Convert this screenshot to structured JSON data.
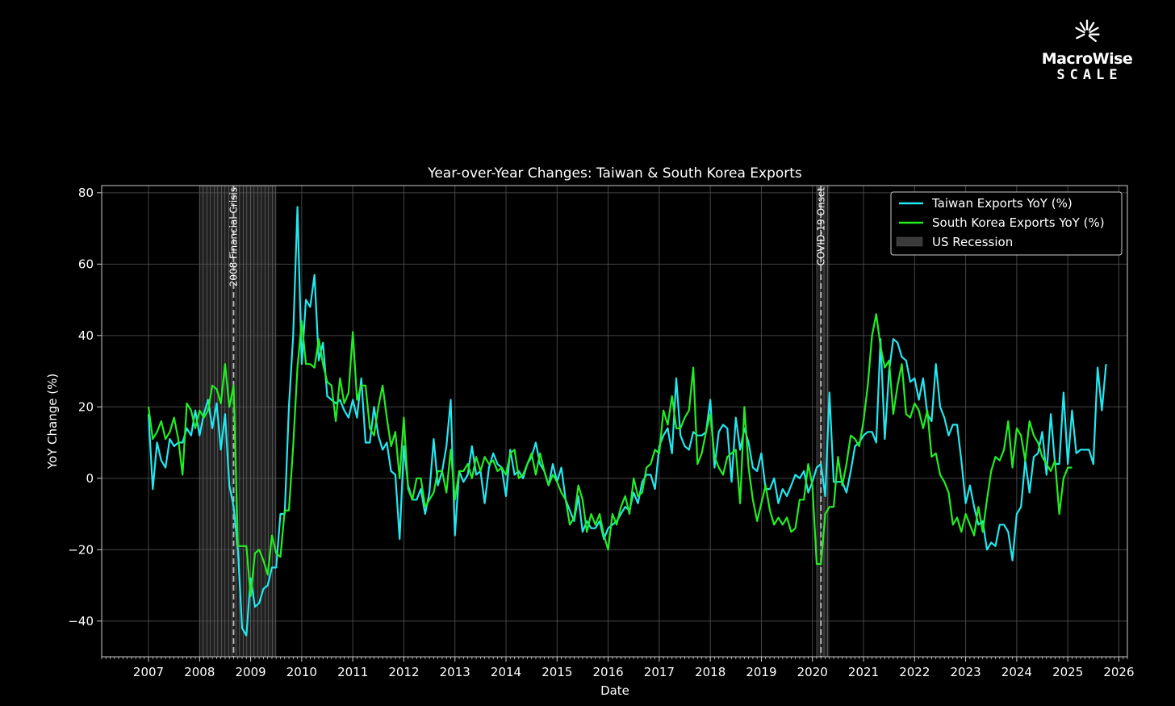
{
  "logo": {
    "brand": "MacroWise",
    "sub": "SCALE"
  },
  "colors": {
    "background": "#000000",
    "taiwan": "#22e8f0",
    "korea": "#22ee22",
    "recession": "#3a3a3a",
    "grid": "#555555",
    "text": "#ffffff"
  },
  "chart_data": {
    "type": "line",
    "title": "Year-over-Year Changes: Taiwan & South Korea Exports",
    "xlabel": "Date",
    "ylabel": "YoY Change (%)",
    "xlim": [
      "2006-02",
      "2026-03"
    ],
    "ylim": [
      -50,
      82
    ],
    "x_ticks": [
      "2007",
      "2008",
      "2009",
      "2010",
      "2011",
      "2012",
      "2013",
      "2014",
      "2015",
      "2016",
      "2017",
      "2018",
      "2019",
      "2020",
      "2021",
      "2022",
      "2023",
      "2024",
      "2025",
      "2026"
    ],
    "y_ticks": [
      -40,
      -20,
      0,
      20,
      40,
      60,
      80
    ],
    "y_tick_labels": [
      "−40",
      "−20",
      "0",
      "20",
      "40",
      "60",
      "80"
    ],
    "grid": true,
    "legend_position": "top-right",
    "legend": [
      "Taiwan Exports YoY (%)",
      "South Korea Exports YoY (%)",
      "US Recession"
    ],
    "recessions": [
      {
        "start": "2008-01",
        "end": "2009-06"
      },
      {
        "start": "2020-02",
        "end": "2020-04"
      }
    ],
    "events": [
      {
        "date": "2008-09",
        "label": "2008 Financial Crisis"
      },
      {
        "date": "2020-03",
        "label": "COVID-19 Onset"
      }
    ],
    "series": [
      {
        "name": "Taiwan Exports YoY (%)",
        "start": "2007-01",
        "values": [
          18,
          -3,
          10,
          5,
          3,
          11,
          9,
          10,
          10,
          14,
          12,
          19,
          12,
          18,
          22,
          14,
          21,
          8,
          18,
          -2,
          -8,
          -20,
          -42,
          -44,
          -28,
          -36,
          -35,
          -31,
          -30,
          -25,
          -25,
          -10,
          -10,
          20,
          40,
          76,
          32,
          50,
          48,
          57,
          33,
          38,
          23,
          22,
          21,
          22,
          19,
          17,
          22,
          17,
          28,
          10,
          10,
          20,
          12,
          8,
          10,
          2,
          1,
          -17,
          9,
          -2,
          -6,
          -6,
          -3,
          -10,
          -4,
          11,
          -2,
          2,
          9,
          22,
          -16,
          2,
          -1,
          1,
          9,
          1,
          2,
          -7,
          3,
          7,
          4,
          3,
          -5,
          8,
          1,
          2,
          0,
          4,
          6,
          10,
          4,
          2,
          -2,
          4,
          -1,
          3,
          -6,
          -9,
          -12,
          -5,
          -15,
          -12,
          -14,
          -14,
          -12,
          -17,
          -14,
          -13,
          -12,
          -10,
          -8,
          -9,
          -4,
          -7,
          -1,
          1,
          1,
          -3,
          9,
          12,
          14,
          7,
          28,
          12,
          9,
          8,
          13,
          12,
          12,
          13,
          22,
          3,
          13,
          15,
          14,
          -1,
          17,
          8,
          14,
          10,
          3,
          2,
          7,
          -3,
          -3,
          0,
          -7,
          -3,
          -5,
          -2,
          1,
          0,
          2,
          -4,
          -1,
          3,
          4,
          -5,
          24,
          -1,
          -1,
          -1,
          -4,
          2,
          9,
          10,
          12,
          13,
          13,
          10,
          39,
          11,
          30,
          39,
          38,
          34,
          33,
          27,
          28,
          22,
          28,
          18,
          16,
          32,
          20,
          17,
          12,
          15,
          15,
          5,
          -7,
          -2,
          -8,
          -13,
          -12,
          -20,
          -18,
          -19,
          -13,
          -13,
          -15,
          -23,
          -10,
          -8,
          5,
          -4,
          6,
          7,
          13,
          1,
          18,
          4,
          4,
          24,
          4,
          19,
          7,
          8,
          8,
          8,
          4,
          31,
          19,
          32
        ]
      },
      {
        "name": "South Korea Exports YoY (%)",
        "start": "2007-01",
        "values": [
          20,
          11,
          13,
          16,
          11,
          13,
          17,
          11,
          1,
          21,
          19,
          14,
          19,
          17,
          19,
          26,
          25,
          21,
          32,
          20,
          26,
          -19,
          -19,
          -19,
          -33,
          -21,
          -20,
          -23,
          -27,
          -16,
          -21,
          -22,
          -9,
          -9,
          9,
          31,
          44,
          32,
          32,
          31,
          39,
          32,
          27,
          26,
          16,
          28,
          21,
          24,
          41,
          22,
          26,
          26,
          14,
          12,
          20,
          26,
          17,
          9,
          13,
          0,
          17,
          -3,
          -6,
          0,
          0,
          -8,
          -6,
          -4,
          2,
          2,
          -4,
          8,
          -6,
          2,
          2,
          4,
          0,
          6,
          2,
          6,
          4,
          5,
          2,
          3,
          1,
          7,
          8,
          0,
          1,
          4,
          7,
          1,
          7,
          2,
          -2,
          1,
          -1,
          -4,
          -6,
          -13,
          -11,
          -2,
          -6,
          -15,
          -10,
          -13,
          -10,
          -16,
          -20,
          -10,
          -13,
          -8,
          -5,
          -10,
          0,
          -5,
          -4,
          3,
          4,
          8,
          7,
          19,
          15,
          23,
          14,
          14,
          17,
          19,
          31,
          4,
          7,
          13,
          18,
          6,
          3,
          1,
          6,
          7,
          8,
          -7,
          20,
          3,
          -6,
          -12,
          -7,
          -2,
          -9,
          -13,
          -11,
          -13,
          -11,
          -15,
          -14,
          -6,
          -6,
          4,
          -2,
          -24,
          -24,
          -10,
          -8,
          -8,
          6,
          -2,
          4,
          12,
          11,
          9,
          16,
          26,
          40,
          46,
          37,
          31,
          33,
          18,
          26,
          32,
          18,
          17,
          21,
          19,
          14,
          19,
          6,
          7,
          1,
          -1,
          -4,
          -13,
          -11,
          -15,
          -10,
          -13,
          -16,
          -8,
          -15,
          -6,
          2,
          6,
          5,
          8,
          16,
          3,
          14,
          12,
          5,
          16,
          12,
          10,
          6,
          4,
          2,
          5,
          -10,
          0,
          3,
          3
        ]
      }
    ]
  }
}
